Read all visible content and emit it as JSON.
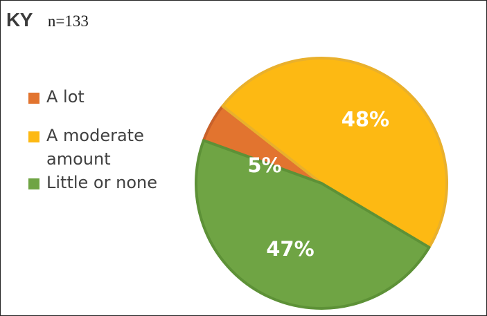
{
  "header": {
    "state": "KY",
    "sample": "n=133"
  },
  "chart_data": {
    "type": "pie",
    "slices": [
      {
        "label": "A lot",
        "value": 5,
        "display": "5%",
        "color": "#E2742F",
        "border": "#C9612A"
      },
      {
        "label": "A moderate amount",
        "value": 48,
        "display": "48%",
        "color": "#FDB913",
        "border": "#E9B02C"
      },
      {
        "label": "Little or none",
        "value": 47,
        "display": "47%",
        "color": "#6FA444",
        "border": "#5D9137"
      }
    ],
    "legend": [
      "A lot",
      "A moderate amount",
      "Little or none"
    ],
    "legend_placement": "left"
  }
}
